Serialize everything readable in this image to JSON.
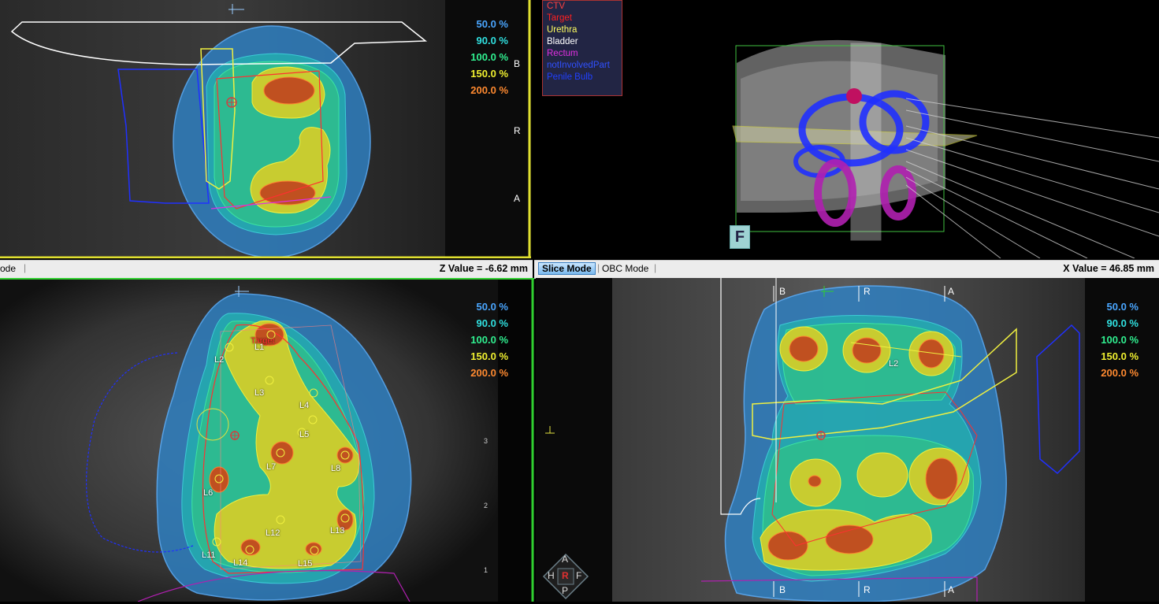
{
  "isodose": [
    {
      "label": "50.0 %",
      "color": "#4aa6ff"
    },
    {
      "label": "90.0 %",
      "color": "#30e0e0"
    },
    {
      "label": "100.0 %",
      "color": "#30f090"
    },
    {
      "label": "150.0 %",
      "color": "#f0f030"
    },
    {
      "label": "200.0 %",
      "color": "#ff8a30"
    }
  ],
  "top_left": {
    "orient": {
      "b": "B",
      "r": "R",
      "a": "A"
    },
    "mode_text": "ode"
  },
  "z_value": "Z Value = -6.62 mm",
  "x_value": "X Value = 46.85 mm",
  "modes": {
    "slice": "Slice Mode",
    "obc": "OBC Mode"
  },
  "legend3d": [
    {
      "label": "CTV",
      "color": "#ff4040"
    },
    {
      "label": "Target",
      "color": "#ff2020"
    },
    {
      "label": "Urethra",
      "color": "#ffff60"
    },
    {
      "label": "Bladder",
      "color": "#ffffff"
    },
    {
      "label": "Rectum",
      "color": "#e030e0"
    },
    {
      "label": "notInvolvedPart",
      "color": "#3050ff"
    },
    {
      "label": "Penile Bulb",
      "color": "#2040ff"
    }
  ],
  "cube_label": "F",
  "bottom_left_labels": [
    "Target",
    "L1",
    "L2",
    "L3",
    "L4",
    "L5",
    "L6",
    "L7",
    "L8",
    "L11",
    "L12",
    "L13",
    "L14",
    "L15"
  ],
  "bottom_right_orient": {
    "b": "B",
    "r": "R",
    "a": "A",
    "b2": "B",
    "r2": "R",
    "a2": "A"
  },
  "bottom_right_label": "L2",
  "nav": {
    "a": "A",
    "h": "H",
    "r": "R",
    "f": "F",
    "p": "P"
  },
  "ruler_ticks": [
    "3",
    "2",
    "1"
  ]
}
